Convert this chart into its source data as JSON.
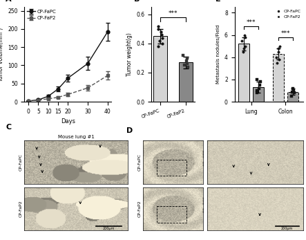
{
  "panel_A": {
    "days": [
      0,
      5,
      10,
      15,
      20,
      30,
      40
    ],
    "CP_FaPC_mean": [
      2,
      5,
      15,
      35,
      65,
      105,
      192
    ],
    "CP_FaPC_err": [
      1,
      2,
      4,
      6,
      10,
      18,
      25
    ],
    "CP_FaP2_mean": [
      2,
      4,
      8,
      12,
      20,
      38,
      72
    ],
    "CP_FaP2_err": [
      0.5,
      1,
      2,
      3,
      4,
      7,
      12
    ],
    "xlabel": "Days",
    "ylabel": "Tumor volume(mm³)",
    "ylim": [
      0,
      260
    ],
    "yticks": [
      0,
      50,
      100,
      150,
      200,
      250
    ],
    "legend_fapc": "CP-FaPC",
    "legend_fap2": "CP-FaP2",
    "color_fapc": "#111111",
    "color_fap2": "#555555"
  },
  "panel_B": {
    "ylabel": "Tumor weight(g)",
    "ylim": [
      0,
      0.65
    ],
    "yticks": [
      0.0,
      0.2,
      0.4,
      0.6
    ],
    "categories": [
      "CP-FaPC",
      "CP-FaP2"
    ],
    "fapc_points": [
      0.42,
      0.44,
      0.46,
      0.48,
      0.5,
      0.52,
      0.38,
      0.4
    ],
    "fap2_points": [
      0.28,
      0.3,
      0.32,
      0.24,
      0.26,
      0.25
    ],
    "fapc_mean": 0.45,
    "fap2_mean": 0.27,
    "fapc_err": 0.05,
    "fap2_err": 0.04,
    "significance": "***",
    "bar_color_fapc": "#d4d4d4",
    "bar_color_fap2": "#888888"
  },
  "panel_E": {
    "ylabel": "Metastasis nodules/Field",
    "ylim": [
      0,
      8.5
    ],
    "yticks": [
      0,
      2,
      4,
      6,
      8
    ],
    "lung_fapc_mean": 5.2,
    "lung_fapc_err": 0.6,
    "lung_fap2_mean": 1.3,
    "lung_fap2_err": 0.5,
    "colon_fapc_mean": 4.3,
    "colon_fapc_err": 0.5,
    "colon_fap2_mean": 0.9,
    "colon_fap2_err": 0.3,
    "lung_fapc_pts": [
      5.0,
      5.5,
      6.0,
      5.8,
      4.8,
      4.5
    ],
    "lung_fap2_pts": [
      1.0,
      1.5,
      2.0,
      0.8,
      1.2,
      1.8
    ],
    "colon_fapc_pts": [
      4.0,
      4.5,
      5.0,
      4.8,
      3.8,
      3.5
    ],
    "colon_fap2_pts": [
      0.8,
      1.0,
      1.2,
      0.5,
      0.9
    ],
    "legend_fapc": "CP-FaPC",
    "legend_fap2": "CP-FaP2",
    "significance_lung": "***",
    "significance_colon": "***",
    "bar_color_fapc": "#d4d4d4",
    "bar_color_fap2": "#999999"
  },
  "panel_C": {
    "title": "C",
    "subtitle": "Mouse lung #1",
    "label_top": "CP-FaPC",
    "label_bottom": "CP-FaP2",
    "scale_bar": "200μm"
  },
  "panel_D": {
    "title": "D",
    "label_top": "CP-FaPC",
    "label_bottom": "CP-FaP2",
    "scale_bar": "200μm"
  }
}
